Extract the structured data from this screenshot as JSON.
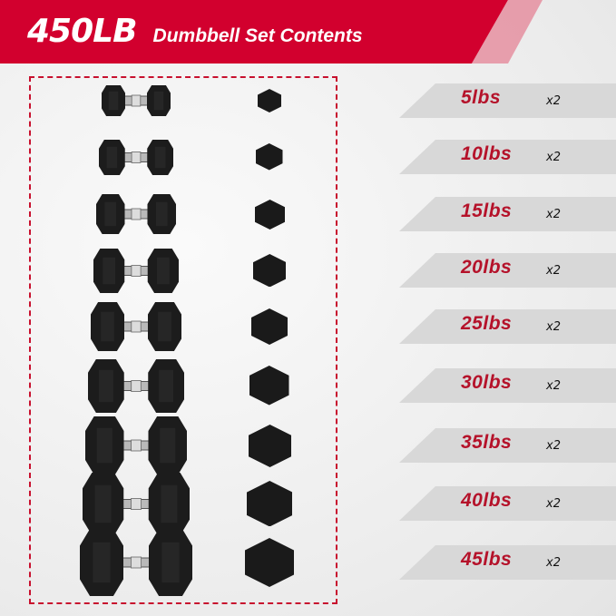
{
  "header": {
    "weight": "450LB",
    "title": "Dumbbell Set Contents"
  },
  "colors": {
    "accent": "#d2002e",
    "band": "#d8d8d8",
    "weight_text": "#b5122a"
  },
  "items": [
    {
      "weight": "5lbs",
      "qty": "x2"
    },
    {
      "weight": "10lbs",
      "qty": "x2"
    },
    {
      "weight": "15lbs",
      "qty": "x2"
    },
    {
      "weight": "20lbs",
      "qty": "x2"
    },
    {
      "weight": "25lbs",
      "qty": "x2"
    },
    {
      "weight": "30lbs",
      "qty": "x2"
    },
    {
      "weight": "35lbs",
      "qty": "x2"
    },
    {
      "weight": "40lbs",
      "qty": "x2"
    },
    {
      "weight": "45lbs",
      "qty": "x2"
    }
  ]
}
